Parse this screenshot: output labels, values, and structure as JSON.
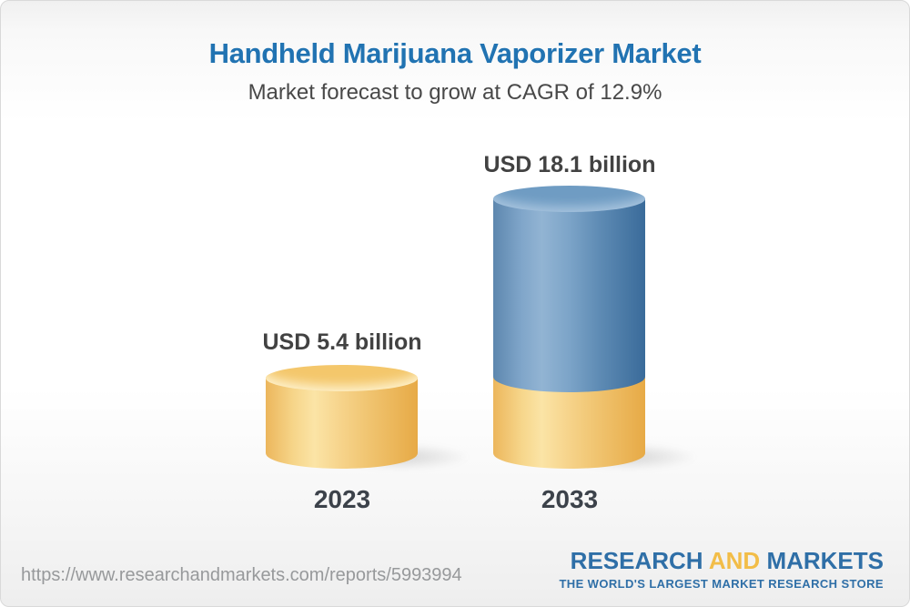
{
  "header": {
    "title": "Handheld Marijuana Vaporizer Market",
    "subtitle": "Market forecast to grow at CAGR of 12.9%"
  },
  "chart_data": {
    "type": "bar",
    "variant": "3d-cylinder",
    "categories": [
      "2023",
      "2033"
    ],
    "values": [
      5.4,
      18.1
    ],
    "unit": "USD billion",
    "value_labels": [
      "USD 5.4 billion",
      "USD 18.1 billion"
    ],
    "cagr_percent": 12.9,
    "legend_position": "none",
    "grid": false,
    "colors": {
      "base_yellow": "#F2C366",
      "growth_blue": "#6E9BC2",
      "title_blue": "#2173B2",
      "label_gray": "#424242"
    },
    "notes": "2033 bar shows 2023 base value in yellow at bottom with blue growth segment stacked above"
  },
  "footer": {
    "url": "https://www.researchandmarkets.com/reports/5993994",
    "logo": {
      "line1_part1": "RESEARCH",
      "line1_part2": "AND",
      "line1_part3": "MARKETS",
      "tagline": "THE WORLD'S LARGEST MARKET RESEARCH STORE"
    },
    "colors": {
      "logo_blue": "#2F6FA7",
      "logo_gold": "#F2BD48"
    }
  }
}
